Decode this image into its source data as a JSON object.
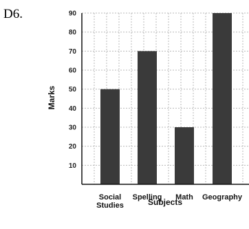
{
  "problem_label": "D6.",
  "chart_data": {
    "type": "bar",
    "categories": [
      [
        "Social",
        "Studies"
      ],
      [
        "Spelling"
      ],
      [
        "Math"
      ],
      [
        "Geography"
      ]
    ],
    "values": [
      50,
      70,
      30,
      90
    ],
    "xlabel": "Subjects",
    "ylabel": "Marks",
    "ylim": [
      0,
      90
    ],
    "yticks": [
      10,
      20,
      30,
      40,
      50,
      60,
      70,
      80,
      90
    ],
    "grid": true,
    "bar_color": "#3a3a3a",
    "grid_color": "#b8b8b8"
  }
}
